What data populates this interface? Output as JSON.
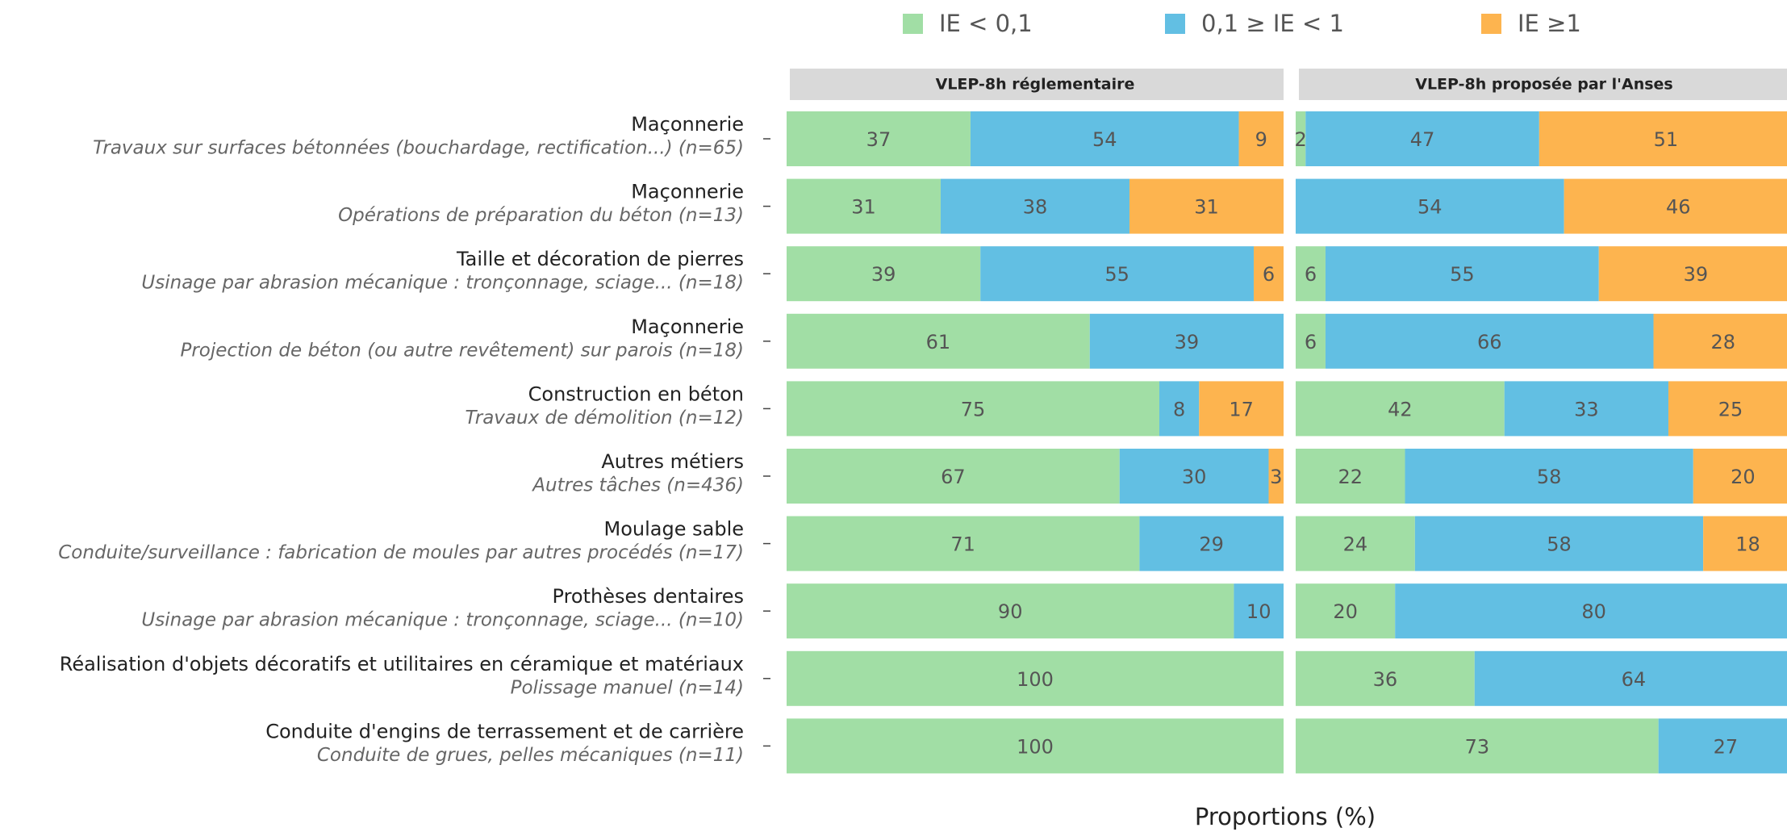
{
  "chart_data": {
    "type": "bar",
    "orientation": "horizontal",
    "stacked": true,
    "xlabel": "Proportions (%)",
    "xlim": [
      0,
      100
    ],
    "legend": "top",
    "categories": [
      "Maçonnerie",
      "Maçonnerie",
      "Taille et décoration de pierres",
      "Maçonnerie",
      "Construction en béton",
      "Autres métiers",
      "Moulage sable",
      "Prothèses dentaires",
      "Réalisation d'objets décoratifs et utilitaires en céramique et matériaux",
      "Conduite d'engins de terrassement et de carrière"
    ],
    "category_details": [
      "Travaux sur surfaces bétonnées (bouchardage, rectification...) (n=65)",
      "Opérations de préparation du béton (n=13)",
      "Usinage par abrasion mécanique : tronçonnage, sciage... (n=18)",
      "Projection de béton (ou autre revêtement) sur parois (n=18)",
      "Travaux de démolition (n=12)",
      "Autres tâches (n=436)",
      "Conduite/surveillance : fabrication de moules par autres procédés (n=17)",
      "Usinage par abrasion mécanique : tronçonnage, sciage... (n=10)",
      "Polissage manuel (n=14)",
      "Conduite de grues, pelles mécaniques (n=11)"
    ],
    "series": [
      {
        "name": "IE < 0,1",
        "color": "#a1dea5"
      },
      {
        "name": "0,1 ≥ IE < 1",
        "color": "#62bfe3"
      },
      {
        "name": "IE ≥1",
        "color": "#fdb44f"
      }
    ],
    "panels": [
      {
        "title": "VLEP-8h réglementaire",
        "values": [
          [
            37,
            31,
            39,
            61,
            75,
            67,
            71,
            90,
            100,
            100
          ],
          [
            54,
            38,
            55,
            39,
            8,
            30,
            29,
            10,
            0,
            0
          ],
          [
            9,
            31,
            6,
            0,
            17,
            3,
            0,
            0,
            0,
            0
          ]
        ]
      },
      {
        "title": "VLEP-8h proposée par l'Anses",
        "values": [
          [
            2,
            0,
            6,
            6,
            42,
            22,
            24,
            20,
            36,
            73
          ],
          [
            47,
            54,
            55,
            66,
            33,
            58,
            58,
            80,
            64,
            27
          ],
          [
            51,
            46,
            39,
            28,
            25,
            20,
            18,
            0,
            0,
            0
          ]
        ]
      }
    ]
  }
}
